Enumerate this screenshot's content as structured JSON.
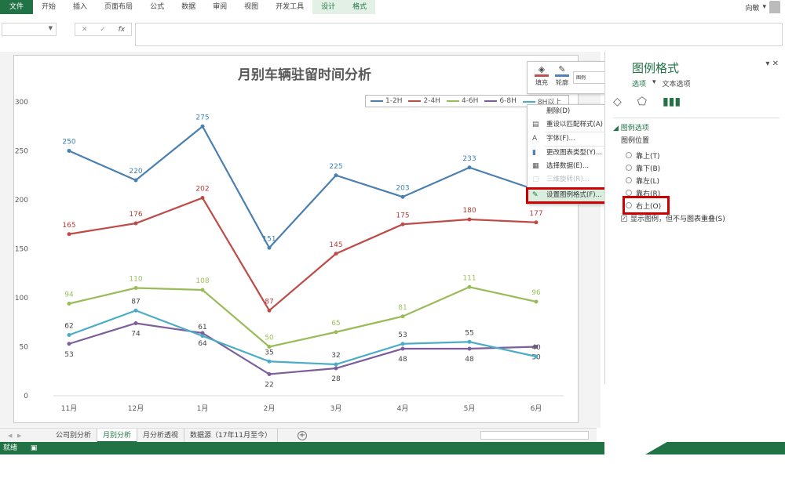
{
  "ribbon": {
    "tabs": [
      "文件",
      "开始",
      "插入",
      "页面布局",
      "公式",
      "数据",
      "审阅",
      "视图",
      "开发工具",
      "设计",
      "格式"
    ],
    "user": "向敏"
  },
  "formula_bar": {
    "fx_label": "fx",
    "cancel": "✕",
    "enter": "✓"
  },
  "chart": {
    "title": "月别车辆驻留时间分析"
  },
  "chart_data": {
    "type": "line",
    "title": "月别车辆驻留时间分析",
    "xlabel": "",
    "ylabel": "",
    "ylim": [
      0,
      300
    ],
    "yticks": [
      0,
      50,
      100,
      150,
      200,
      250,
      300
    ],
    "categories": [
      "11月",
      "12月",
      "1月",
      "2月",
      "3月",
      "4月",
      "5月",
      "6月"
    ],
    "series": [
      {
        "name": "1-2H",
        "color": "#4a7fb0",
        "label_color": "#3b7fb4",
        "values": [
          250,
          220,
          275,
          151,
          225,
          203,
          233,
          210
        ]
      },
      {
        "name": "2-4H",
        "color": "#be4b48",
        "label_color": "#b23a36",
        "values": [
          165,
          176,
          202,
          87,
          145,
          175,
          180,
          177
        ]
      },
      {
        "name": "4-6H",
        "color": "#9bbb59",
        "label_color": "#9bc15a",
        "values": [
          94,
          110,
          108,
          50,
          65,
          81,
          111,
          96
        ]
      },
      {
        "name": "6-8H",
        "color": "#7b5e9a",
        "label_color": "#444444",
        "values": [
          53,
          74,
          64,
          22,
          28,
          48,
          48,
          50
        ]
      },
      {
        "name": "8H以上",
        "color": "#4bacc6",
        "label_color": "#444444",
        "values": [
          62,
          87,
          61,
          35,
          32,
          53,
          55,
          40
        ]
      }
    ],
    "legend_position": "top-right",
    "grid": false
  },
  "legend": {
    "items": [
      {
        "label": "1-2H",
        "color": "#4a7fb0"
      },
      {
        "label": "2-4H",
        "color": "#be4b48"
      },
      {
        "label": "4-6H",
        "color": "#9bbb59"
      },
      {
        "label": "6-8H",
        "color": "#7b5e9a"
      },
      {
        "label": "8H以上",
        "color": "#4bacc6"
      }
    ]
  },
  "mini_toolbar": {
    "fill": "填充",
    "outline": "轮廓",
    "element_select": "图例"
  },
  "context_menu": {
    "items": [
      {
        "label": "删除(D)",
        "icon": "",
        "disabled": false
      },
      {
        "label": "重设以匹配样式(A)",
        "icon": "reset-icon",
        "disabled": false
      },
      {
        "label": "字体(F)...",
        "icon": "font-icon",
        "disabled": false
      },
      {
        "label": "更改图表类型(Y)...",
        "icon": "chart-type-icon",
        "disabled": false
      },
      {
        "label": "选择数据(E)...",
        "icon": "select-data-icon",
        "disabled": false
      },
      {
        "label": "三维旋转(R)...",
        "icon": "rotate-3d-icon",
        "disabled": true
      },
      {
        "label": "设置图例格式(F)...",
        "icon": "format-legend-icon",
        "disabled": false,
        "highlighted": true
      }
    ]
  },
  "format_pane": {
    "title": "图例格式",
    "close": "✕",
    "tab_legend": "选项",
    "tab_text": "文本选项",
    "section": "图例选项",
    "position_label": "图例位置",
    "positions": [
      "靠上(T)",
      "靠下(B)",
      "靠左(L)",
      "靠右(R)",
      "右上(O)"
    ],
    "no_overlap": "显示图例，但不与图表重叠(S)",
    "no_overlap_checked": true
  },
  "sheet_tabs": [
    "公司别分析",
    "月别分析",
    "月分析透视",
    "数据源（17年11月至今）"
  ],
  "active_sheet": "月别分析",
  "status": {
    "ready": "就绪"
  }
}
